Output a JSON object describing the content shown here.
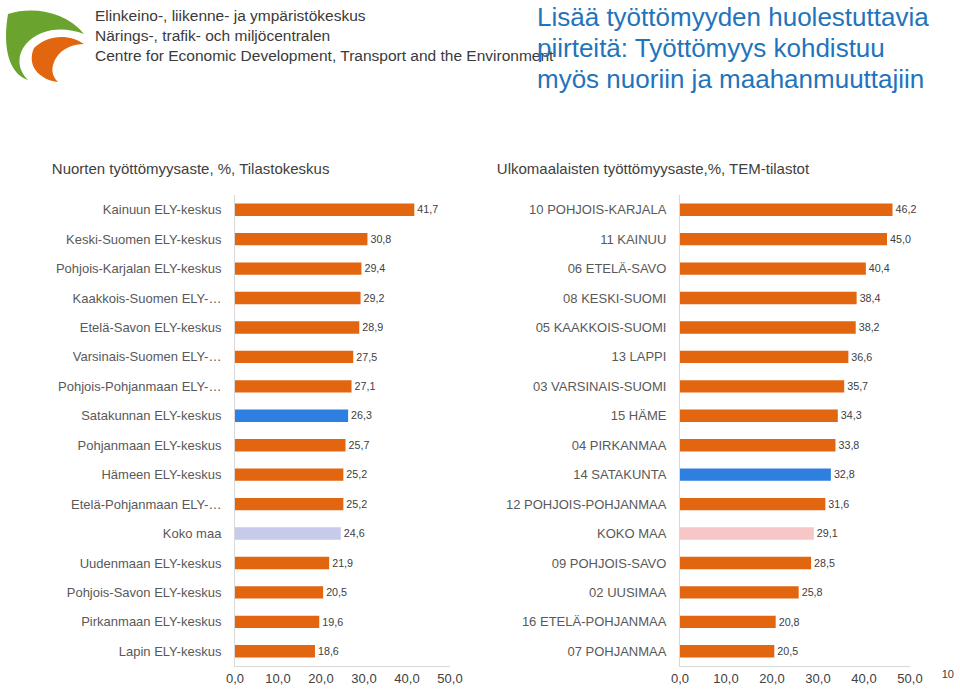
{
  "header": {
    "organization": [
      "Elinkeino-, liikenne- ja ympäristökeskus",
      "Närings-, trafik- och miljöcentralen",
      "Centre for Economic Development, Transport and the Environment"
    ],
    "title": [
      "Lisää työttömyyden huolestuttavia",
      "piirteitä: Työttömyys kohdistuu",
      "myös nuoriin ja maahanmuuttajiin"
    ]
  },
  "page_number": 10,
  "chart_data": [
    {
      "type": "bar",
      "orientation": "horizontal",
      "title": "Nuorten työttömyysaste, %, Tilastokeskus",
      "categories": [
        "Kainuun ELY-keskus",
        "Keski-Suomen ELY-keskus",
        "Pohjois-Karjalan ELY-keskus",
        "Kaakkois-Suomen ELY-…",
        "Etelä-Savon ELY-keskus",
        "Varsinais-Suomen ELY-…",
        "Pohjois-Pohjanmaan ELY-…",
        "Satakunnan ELY-keskus",
        "Pohjanmaan ELY-keskus",
        "Hämeen ELY-keskus",
        "Etelä-Pohjanmaan ELY-…",
        "Koko maa",
        "Uudenmaan ELY-keskus",
        "Pohjois-Savon ELY-keskus",
        "Pirkanmaan ELY-keskus",
        "Lapin ELY-keskus"
      ],
      "values": [
        41.7,
        30.8,
        29.4,
        29.2,
        28.9,
        27.5,
        27.1,
        26.3,
        25.7,
        25.2,
        25.2,
        24.6,
        21.9,
        20.5,
        19.6,
        18.6
      ],
      "value_labels": [
        "41,7",
        "30,8",
        "29,4",
        "29,2",
        "28,9",
        "27,5",
        "27,1",
        "26,3",
        "25,7",
        "25,2",
        "25,2",
        "24,6",
        "21,9",
        "20,5",
        "19,6",
        "18,6"
      ],
      "colors": [
        "#e2650f",
        "#e2650f",
        "#e2650f",
        "#e2650f",
        "#e2650f",
        "#e2650f",
        "#e2650f",
        "#2f7fe0",
        "#e2650f",
        "#e2650f",
        "#e2650f",
        "#c5cbe9",
        "#e2650f",
        "#e2650f",
        "#e2650f",
        "#e2650f"
      ],
      "xlim": [
        0,
        50
      ],
      "xticks": [
        {
          "value": 0,
          "label": "0,0"
        },
        {
          "value": 10,
          "label": "10,0"
        },
        {
          "value": 20,
          "label": "20,0"
        },
        {
          "value": 30,
          "label": "30,0"
        },
        {
          "value": 40,
          "label": "40,0"
        },
        {
          "value": 50,
          "label": "50,0"
        }
      ],
      "grid": false,
      "data_labels": true
    },
    {
      "type": "bar",
      "orientation": "horizontal",
      "title": "Ulkomaalaisten työttömyysaste,%, TEM-tilastot",
      "categories": [
        "10 POHJOIS-KARJALA",
        "11 KAINUU",
        "06 ETELÄ-SAVO",
        "08 KESKI-SUOMI",
        "05 KAAKKOIS-SUOMI",
        "13 LAPPI",
        "03 VARSINAIS-SUOMI",
        "15 HÄME",
        "04 PIRKANMAA",
        "14 SATAKUNTA",
        "12 POHJOIS-POHJANMAA",
        "KOKO MAA",
        "09 POHJOIS-SAVO",
        "02 UUSIMAA",
        "16 ETELÄ-POHJANMAA",
        "07 POHJANMAA"
      ],
      "values": [
        46.2,
        45.0,
        40.4,
        38.4,
        38.2,
        36.6,
        35.7,
        34.3,
        33.8,
        32.8,
        31.6,
        29.1,
        28.5,
        25.8,
        20.8,
        20.5
      ],
      "value_labels": [
        "46,2",
        "45,0",
        "40,4",
        "38,4",
        "38,2",
        "36,6",
        "35,7",
        "34,3",
        "33,8",
        "32,8",
        "31,6",
        "29,1",
        "28,5",
        "25,8",
        "20,8",
        "20,5"
      ],
      "colors": [
        "#e2650f",
        "#e2650f",
        "#e2650f",
        "#e2650f",
        "#e2650f",
        "#e2650f",
        "#e2650f",
        "#e2650f",
        "#e2650f",
        "#2f7fe0",
        "#e2650f",
        "#f7c6c6",
        "#e2650f",
        "#e2650f",
        "#e2650f",
        "#e2650f"
      ],
      "xlim": [
        0,
        50
      ],
      "xticks": [
        {
          "value": 0,
          "label": "0,0"
        },
        {
          "value": 10,
          "label": "10,0"
        },
        {
          "value": 20,
          "label": "20,0"
        },
        {
          "value": 30,
          "label": "30,0"
        },
        {
          "value": 40,
          "label": "40,0"
        },
        {
          "value": 50,
          "label": "50,0"
        }
      ],
      "grid": false,
      "data_labels": true
    }
  ]
}
